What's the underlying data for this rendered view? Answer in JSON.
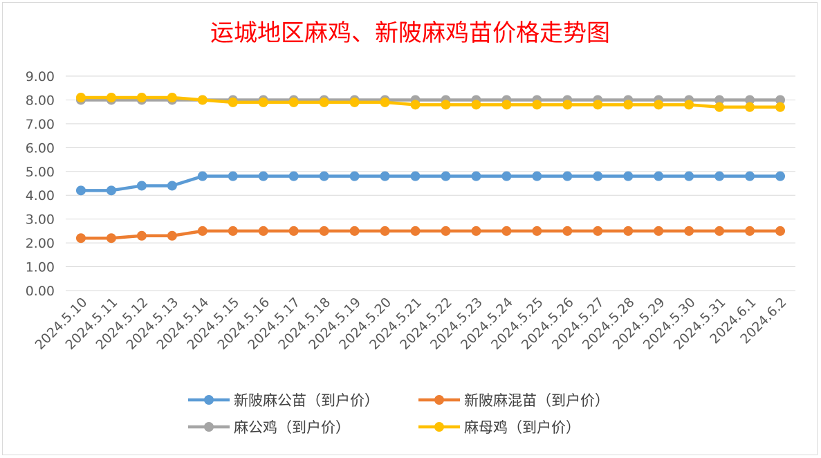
{
  "chart_data": {
    "type": "line",
    "title": "运城地区麻鸡、新陂麻鸡苗价格走势图",
    "xlabel": "",
    "ylabel": "",
    "ylim": [
      0,
      9
    ],
    "yticks": [
      "0.00",
      "1.00",
      "2.00",
      "3.00",
      "4.00",
      "5.00",
      "6.00",
      "7.00",
      "8.00",
      "9.00"
    ],
    "grid": true,
    "legend_position": "bottom",
    "categories": [
      "2024.5.10",
      "2024.5.11",
      "2024.5.12",
      "2024.5.13",
      "2024.5.14",
      "2024.5.15",
      "2024.5.16",
      "2024.5.17",
      "2024.5.18",
      "2024.5.19",
      "2024.5.20",
      "2024.5.21",
      "2024.5.22",
      "2024.5.23",
      "2024.5.24",
      "2024.5.25",
      "2024.5.26",
      "2024.5.27",
      "2024.5.28",
      "2024.5.29",
      "2024.5.30",
      "2024.5.31",
      "2024.6.1",
      "2024.6.2"
    ],
    "series": [
      {
        "name": "新陂麻公苗（到户价）",
        "color": "#5b9bd5",
        "values": [
          4.2,
          4.2,
          4.4,
          4.4,
          4.8,
          4.8,
          4.8,
          4.8,
          4.8,
          4.8,
          4.8,
          4.8,
          4.8,
          4.8,
          4.8,
          4.8,
          4.8,
          4.8,
          4.8,
          4.8,
          4.8,
          4.8,
          4.8,
          4.8
        ]
      },
      {
        "name": "新陂麻混苗（到户价）",
        "color": "#ed7d31",
        "values": [
          2.2,
          2.2,
          2.3,
          2.3,
          2.5,
          2.5,
          2.5,
          2.5,
          2.5,
          2.5,
          2.5,
          2.5,
          2.5,
          2.5,
          2.5,
          2.5,
          2.5,
          2.5,
          2.5,
          2.5,
          2.5,
          2.5,
          2.5,
          2.5
        ]
      },
      {
        "name": "麻公鸡（到户价）",
        "color": "#a5a5a5",
        "values": [
          8.0,
          8.0,
          8.0,
          8.0,
          8.0,
          8.0,
          8.0,
          8.0,
          8.0,
          8.0,
          8.0,
          8.0,
          8.0,
          8.0,
          8.0,
          8.0,
          8.0,
          8.0,
          8.0,
          8.0,
          8.0,
          8.0,
          8.0,
          8.0
        ]
      },
      {
        "name": "麻母鸡（到户价）",
        "color": "#ffc000",
        "values": [
          8.1,
          8.1,
          8.1,
          8.1,
          8.0,
          7.9,
          7.9,
          7.9,
          7.9,
          7.9,
          7.9,
          7.8,
          7.8,
          7.8,
          7.8,
          7.8,
          7.8,
          7.8,
          7.8,
          7.8,
          7.8,
          7.7,
          7.7,
          7.7
        ]
      }
    ]
  }
}
